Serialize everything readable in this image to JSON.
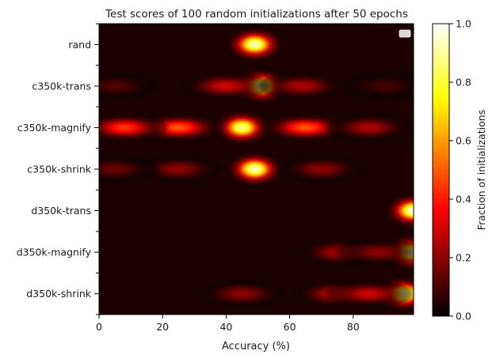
{
  "chart_data": {
    "type": "heatmap",
    "title": "Test scores of 100 random initializations after 50 epochs",
    "xlabel": "Accuracy (%)",
    "ylabel": "",
    "x_ticks": [
      0,
      20,
      40,
      60,
      80
    ],
    "xlim": [
      0,
      99
    ],
    "rows": [
      "rand",
      "c350k-trans",
      "c350k-magnify",
      "c350k-shrink",
      "d350k-trans",
      "d350k-magnify",
      "d350k-shrink"
    ],
    "colormap": "hot",
    "colorbar": {
      "label": "Fraction of initializations",
      "range": [
        0,
        1
      ],
      "ticks": [
        0.0,
        0.2,
        0.4,
        0.6,
        0.8,
        1.0
      ],
      "tick_labels": [
        "0.0",
        "0.2",
        "0.4",
        "0.6",
        "0.8",
        "1.0"
      ]
    },
    "legend": {
      "position": "top-right",
      "entries": [
        ""
      ]
    },
    "rows_data": [
      {
        "name": "rand",
        "components": [
          {
            "x": 49,
            "fraction": 0.95
          }
        ]
      },
      {
        "name": "c350k-trans",
        "components": [
          {
            "x": 51,
            "fraction": 0.95
          },
          {
            "x": 40,
            "fraction": 0.3
          },
          {
            "x": 64,
            "fraction": 0.25
          },
          {
            "x": 5,
            "fraction": 0.12
          },
          {
            "x": 90,
            "fraction": 0.1
          }
        ]
      },
      {
        "name": "c350k-magnify",
        "components": [
          {
            "x": 45,
            "fraction": 0.9
          },
          {
            "x": 25,
            "fraction": 0.5
          },
          {
            "x": 65,
            "fraction": 0.5
          },
          {
            "x": 8,
            "fraction": 0.45
          },
          {
            "x": 85,
            "fraction": 0.25
          }
        ]
      },
      {
        "name": "c350k-shrink",
        "components": [
          {
            "x": 49,
            "fraction": 0.95
          },
          {
            "x": 25,
            "fraction": 0.2
          },
          {
            "x": 70,
            "fraction": 0.2
          },
          {
            "x": 5,
            "fraction": 0.15
          }
        ]
      },
      {
        "name": "d350k-trans",
        "components": [
          {
            "x": 99,
            "fraction": 1.0
          }
        ]
      },
      {
        "name": "d350k-magnify",
        "components": [
          {
            "x": 98,
            "fraction": 0.95
          },
          {
            "x": 76,
            "fraction": 0.25
          },
          {
            "x": 88,
            "fraction": 0.2
          }
        ]
      },
      {
        "name": "d350k-shrink",
        "components": [
          {
            "x": 96,
            "fraction": 0.95
          },
          {
            "x": 75,
            "fraction": 0.3
          },
          {
            "x": 85,
            "fraction": 0.3
          },
          {
            "x": 45,
            "fraction": 0.2
          }
        ]
      }
    ]
  }
}
